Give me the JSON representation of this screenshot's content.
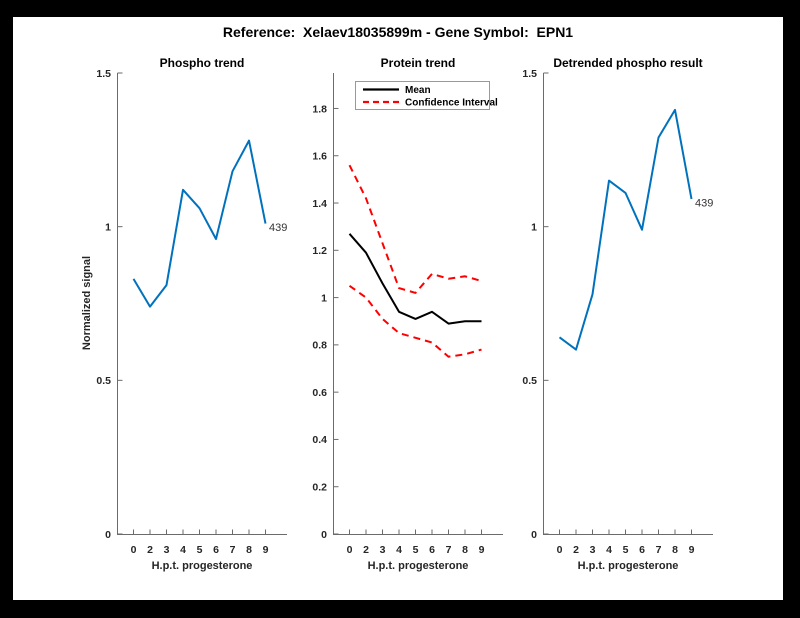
{
  "figure": {
    "title": "Reference:  Xelaev18035899m - Gene Symbol:  EPN1",
    "background": "#ffffff",
    "frame_color": "#000000"
  },
  "colors": {
    "signal_blue": "#0072BD",
    "confidence_red": "#ff0000",
    "mean_black": "#000000",
    "axis_gray": "#6b6b6b",
    "tick_text": "#262626"
  },
  "chart_data": [
    {
      "type": "line",
      "title": "Phospho trend",
      "xlabel": "H.p.t. progesterone",
      "ylabel": "Normalized signal",
      "x_ticklabels": [
        "0",
        "2",
        "3",
        "4",
        "5",
        "6",
        "7",
        "8",
        "9"
      ],
      "yticks": [
        0,
        0.5,
        1,
        1.5
      ],
      "ylim": [
        0,
        1.5
      ],
      "grid": false,
      "legend": null,
      "series": [
        {
          "name": "Phospho signal",
          "color": "#0072BD",
          "dash": "solid",
          "values": [
            0.83,
            0.74,
            0.81,
            1.12,
            1.06,
            0.96,
            1.18,
            1.28,
            1.01
          ]
        }
      ],
      "annotation": {
        "text": "439",
        "series": 0,
        "point_index": 8
      }
    },
    {
      "type": "line",
      "title": "Protein trend",
      "xlabel": "H.p.t. progesterone",
      "ylabel": "",
      "x_ticklabels": [
        "0",
        "2",
        "3",
        "4",
        "5",
        "6",
        "7",
        "8",
        "9"
      ],
      "yticks": [
        0,
        0.2,
        0.4,
        0.6,
        0.8,
        1,
        1.2,
        1.4,
        1.6,
        1.8
      ],
      "ylim": [
        0,
        1.95
      ],
      "grid": false,
      "legend": {
        "position": "northwest",
        "entries": [
          "Mean",
          "Confidence Interval"
        ]
      },
      "series": [
        {
          "name": "Mean",
          "color": "#000000",
          "dash": "solid",
          "values": [
            1.27,
            1.19,
            1.06,
            0.94,
            0.91,
            0.94,
            0.89,
            0.9,
            0.9
          ]
        },
        {
          "name": "Confidence Interval upper",
          "color": "#ff0000",
          "dash": "dashed",
          "values": [
            1.56,
            1.42,
            1.23,
            1.04,
            1.02,
            1.1,
            1.08,
            1.09,
            1.07
          ]
        },
        {
          "name": "Confidence Interval lower",
          "color": "#ff0000",
          "dash": "dashed",
          "values": [
            1.05,
            1.0,
            0.91,
            0.85,
            0.83,
            0.81,
            0.75,
            0.76,
            0.78
          ]
        }
      ],
      "annotation": null
    },
    {
      "type": "line",
      "title": "Detrended phospho result",
      "xlabel": "H.p.t. progesterone",
      "ylabel": "",
      "x_ticklabels": [
        "0",
        "2",
        "3",
        "4",
        "5",
        "6",
        "7",
        "8",
        "9"
      ],
      "yticks": [
        0,
        0.5,
        1,
        1.5
      ],
      "ylim": [
        0,
        1.5
      ],
      "grid": false,
      "legend": null,
      "series": [
        {
          "name": "Detrended phospho signal",
          "color": "#0072BD",
          "dash": "solid",
          "values": [
            0.64,
            0.6,
            0.78,
            1.15,
            1.11,
            0.99,
            1.29,
            1.38,
            1.09
          ]
        }
      ],
      "annotation": {
        "text": "439",
        "series": 0,
        "point_index": 8
      }
    }
  ]
}
